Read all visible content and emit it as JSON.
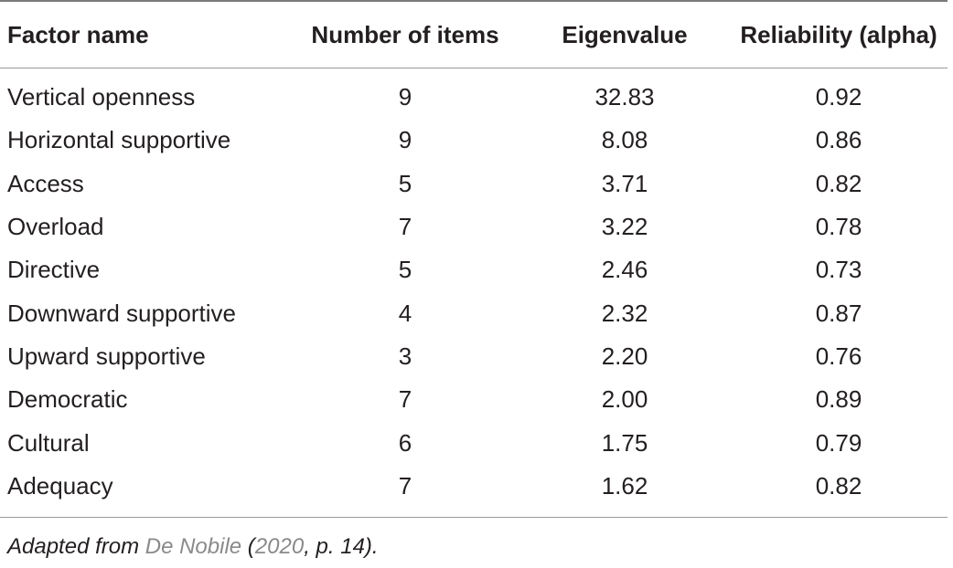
{
  "table": {
    "headers": [
      "Factor name",
      "Number of items",
      "Eigenvalue",
      "Reliability (alpha)"
    ],
    "rows": [
      {
        "factor": "Vertical openness",
        "items": "9",
        "eigenvalue": "32.83",
        "alpha": "0.92"
      },
      {
        "factor": "Horizontal supportive",
        "items": "9",
        "eigenvalue": "8.08",
        "alpha": "0.86"
      },
      {
        "factor": "Access",
        "items": "5",
        "eigenvalue": "3.71",
        "alpha": "0.82"
      },
      {
        "factor": "Overload",
        "items": "7",
        "eigenvalue": "3.22",
        "alpha": "0.78"
      },
      {
        "factor": "Directive",
        "items": "5",
        "eigenvalue": "2.46",
        "alpha": "0.73"
      },
      {
        "factor": "Downward supportive",
        "items": "4",
        "eigenvalue": "2.32",
        "alpha": "0.87"
      },
      {
        "factor": "Upward supportive",
        "items": "3",
        "eigenvalue": "2.20",
        "alpha": "0.76"
      },
      {
        "factor": "Democratic",
        "items": "7",
        "eigenvalue": "2.00",
        "alpha": "0.89"
      },
      {
        "factor": "Cultural",
        "items": "6",
        "eigenvalue": "1.75",
        "alpha": "0.79"
      },
      {
        "factor": "Adequacy",
        "items": "7",
        "eigenvalue": "1.62",
        "alpha": "0.82"
      }
    ]
  },
  "footnote": {
    "prefix": "Adapted from ",
    "author": "De Nobile",
    "open_paren": " (",
    "year": "2020",
    "suffix": ", p. 14)."
  },
  "colors": {
    "text": "#231f20",
    "link": "#8a8a8a",
    "rule": "#9a9a9a"
  }
}
